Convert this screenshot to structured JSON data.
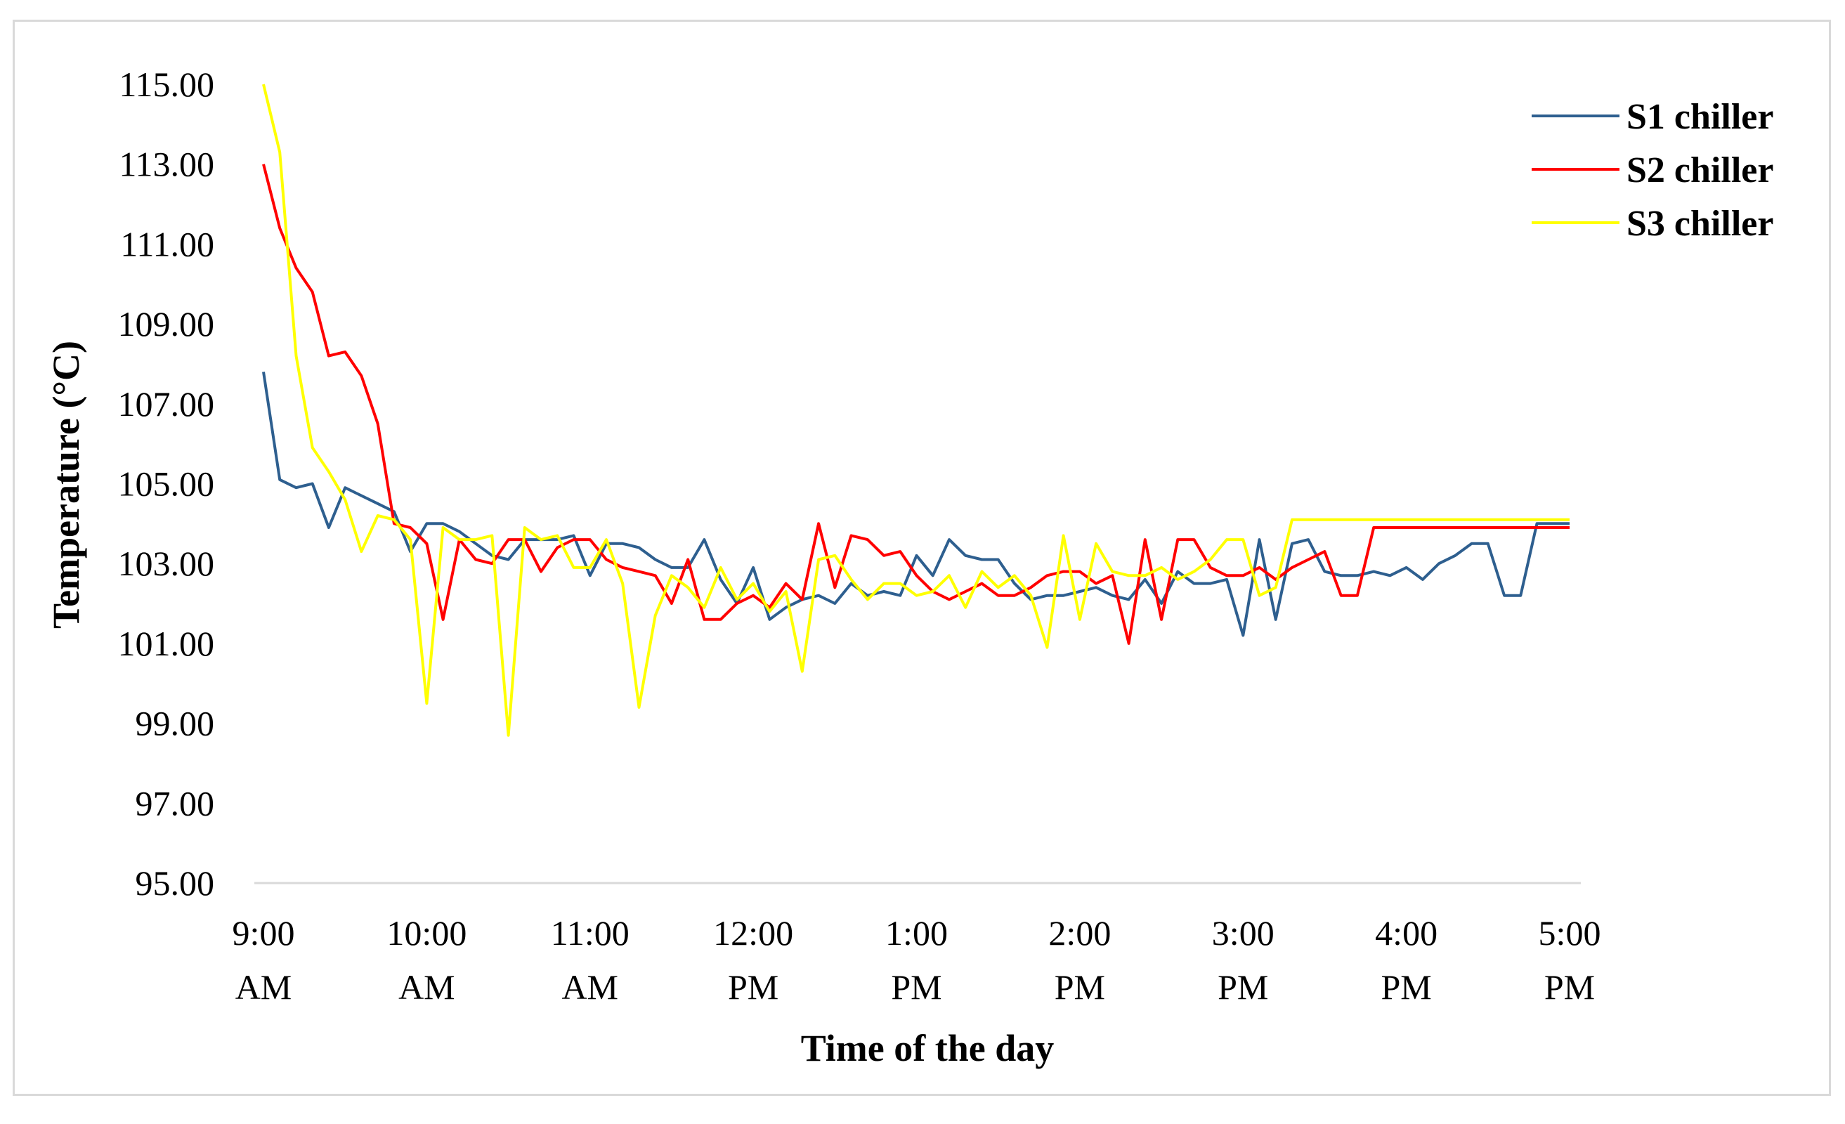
{
  "chart_data": {
    "type": "line",
    "title": "",
    "xlabel": "Time of the day",
    "ylabel": "Temperature (°C)",
    "ylim": [
      95,
      115
    ],
    "y_ticks": [
      "95.00",
      "97.00",
      "99.00",
      "101.00",
      "103.00",
      "105.00",
      "107.00",
      "109.00",
      "111.00",
      "113.00",
      "115.00"
    ],
    "x_ticks": [
      {
        "line1": "9:00",
        "line2": "AM"
      },
      {
        "line1": "10:00",
        "line2": "AM"
      },
      {
        "line1": "11:00",
        "line2": "AM"
      },
      {
        "line1": "12:00",
        "line2": "PM"
      },
      {
        "line1": "1:00",
        "line2": "PM"
      },
      {
        "line1": "2:00",
        "line2": "PM"
      },
      {
        "line1": "3:00",
        "line2": "PM"
      },
      {
        "line1": "4:00",
        "line2": "PM"
      },
      {
        "line1": "5:00",
        "line2": "PM"
      }
    ],
    "x": [
      "9:00 AM",
      "9:06 AM",
      "9:12 AM",
      "9:18 AM",
      "9:24 AM",
      "9:30 AM",
      "9:36 AM",
      "9:42 AM",
      "9:48 AM",
      "9:54 AM",
      "10:00 AM",
      "10:06 AM",
      "10:12 AM",
      "10:18 AM",
      "10:24 AM",
      "10:30 AM",
      "10:36 AM",
      "10:42 AM",
      "10:48 AM",
      "10:54 AM",
      "11:00 AM",
      "11:06 AM",
      "11:12 AM",
      "11:18 AM",
      "11:24 AM",
      "11:30 AM",
      "11:36 AM",
      "11:42 AM",
      "11:48 AM",
      "11:54 AM",
      "12:00 PM",
      "12:06 PM",
      "12:12 PM",
      "12:18 PM",
      "12:24 PM",
      "12:30 PM",
      "12:36 PM",
      "12:42 PM",
      "12:48 PM",
      "12:54 PM",
      "1:00 PM",
      "1:06 PM",
      "1:12 PM",
      "1:18 PM",
      "1:24 PM",
      "1:30 PM",
      "1:36 PM",
      "1:42 PM",
      "1:48 PM",
      "1:54 PM",
      "2:00 PM",
      "2:06 PM",
      "2:12 PM",
      "2:18 PM",
      "2:24 PM",
      "2:30 PM",
      "2:36 PM",
      "2:42 PM",
      "2:48 PM",
      "2:54 PM",
      "3:00 PM",
      "3:06 PM",
      "3:12 PM",
      "3:18 PM",
      "3:24 PM",
      "3:30 PM",
      "3:36 PM",
      "3:42 PM",
      "3:48 PM",
      "3:54 PM",
      "4:00 PM",
      "4:06 PM",
      "4:12 PM",
      "4:18 PM",
      "4:24 PM",
      "4:30 PM",
      "4:36 PM",
      "4:42 PM",
      "4:48 PM",
      "4:54 PM",
      "5:00 PM"
    ],
    "series": [
      {
        "name": "S1 chiller",
        "color": "#2e5f8f",
        "values": [
          107.8,
          105.1,
          104.9,
          105.0,
          103.9,
          104.9,
          104.7,
          104.5,
          104.3,
          103.3,
          104.0,
          104.0,
          103.8,
          103.5,
          103.2,
          103.1,
          103.6,
          103.6,
          103.6,
          103.7,
          102.7,
          103.5,
          103.5,
          103.4,
          103.1,
          102.9,
          102.9,
          103.6,
          102.6,
          102.0,
          102.9,
          101.6,
          101.9,
          102.1,
          102.2,
          102.0,
          102.5,
          102.2,
          102.3,
          102.2,
          103.2,
          102.7,
          103.6,
          103.2,
          103.1,
          103.1,
          102.5,
          102.1,
          102.2,
          102.2,
          102.3,
          102.4,
          102.2,
          102.1,
          102.6,
          102.0,
          102.8,
          102.5,
          102.5,
          102.6,
          101.2,
          103.6,
          101.6,
          103.5,
          103.6,
          102.8,
          102.7,
          102.7,
          102.8,
          102.7,
          102.9,
          102.6,
          103.0,
          103.2,
          103.5,
          103.5,
          102.2,
          102.2,
          104.0,
          104.0,
          104.0
        ]
      },
      {
        "name": "S2 chiller",
        "color": "#ff0000",
        "values": [
          113.0,
          111.4,
          110.4,
          109.8,
          108.2,
          108.3,
          107.7,
          106.5,
          104.0,
          103.9,
          103.5,
          101.6,
          103.6,
          103.1,
          103.0,
          103.6,
          103.6,
          102.8,
          103.4,
          103.6,
          103.6,
          103.1,
          102.9,
          102.8,
          102.7,
          102.0,
          103.1,
          101.6,
          101.6,
          102.0,
          102.2,
          101.9,
          102.5,
          102.1,
          104.0,
          102.4,
          103.7,
          103.6,
          103.2,
          103.3,
          102.7,
          102.3,
          102.1,
          102.3,
          102.5,
          102.2,
          102.2,
          102.4,
          102.7,
          102.8,
          102.8,
          102.5,
          102.7,
          101.0,
          103.6,
          101.6,
          103.6,
          103.6,
          102.9,
          102.7,
          102.7,
          102.9,
          102.6,
          102.9,
          103.1,
          103.3,
          102.2,
          102.2,
          103.9,
          103.9,
          103.9,
          103.9,
          103.9,
          103.9,
          103.9,
          103.9,
          103.9,
          103.9,
          103.9,
          103.9,
          103.9
        ]
      },
      {
        "name": "S3 chiller",
        "color": "#ffff00",
        "values": [
          115.0,
          113.3,
          108.2,
          105.9,
          105.3,
          104.6,
          103.3,
          104.2,
          104.1,
          103.6,
          99.5,
          103.9,
          103.6,
          103.6,
          103.7,
          98.7,
          103.9,
          103.6,
          103.7,
          102.9,
          102.9,
          103.6,
          102.5,
          99.4,
          101.7,
          102.7,
          102.4,
          101.9,
          102.9,
          102.1,
          102.5,
          101.8,
          102.3,
          100.3,
          103.1,
          103.2,
          102.6,
          102.1,
          102.5,
          102.5,
          102.2,
          102.3,
          102.7,
          101.9,
          102.8,
          102.4,
          102.7,
          102.2,
          100.9,
          103.7,
          101.6,
          103.5,
          102.8,
          102.7,
          102.7,
          102.9,
          102.6,
          102.8,
          103.1,
          103.6,
          103.6,
          102.2,
          102.4,
          104.1,
          104.1,
          104.1,
          104.1,
          104.1,
          104.1,
          104.1,
          104.1,
          104.1,
          104.1,
          104.1,
          104.1,
          104.1,
          104.1,
          104.1,
          104.1,
          104.1,
          104.1
        ]
      }
    ],
    "legend_position": "top-right",
    "grid": false
  }
}
